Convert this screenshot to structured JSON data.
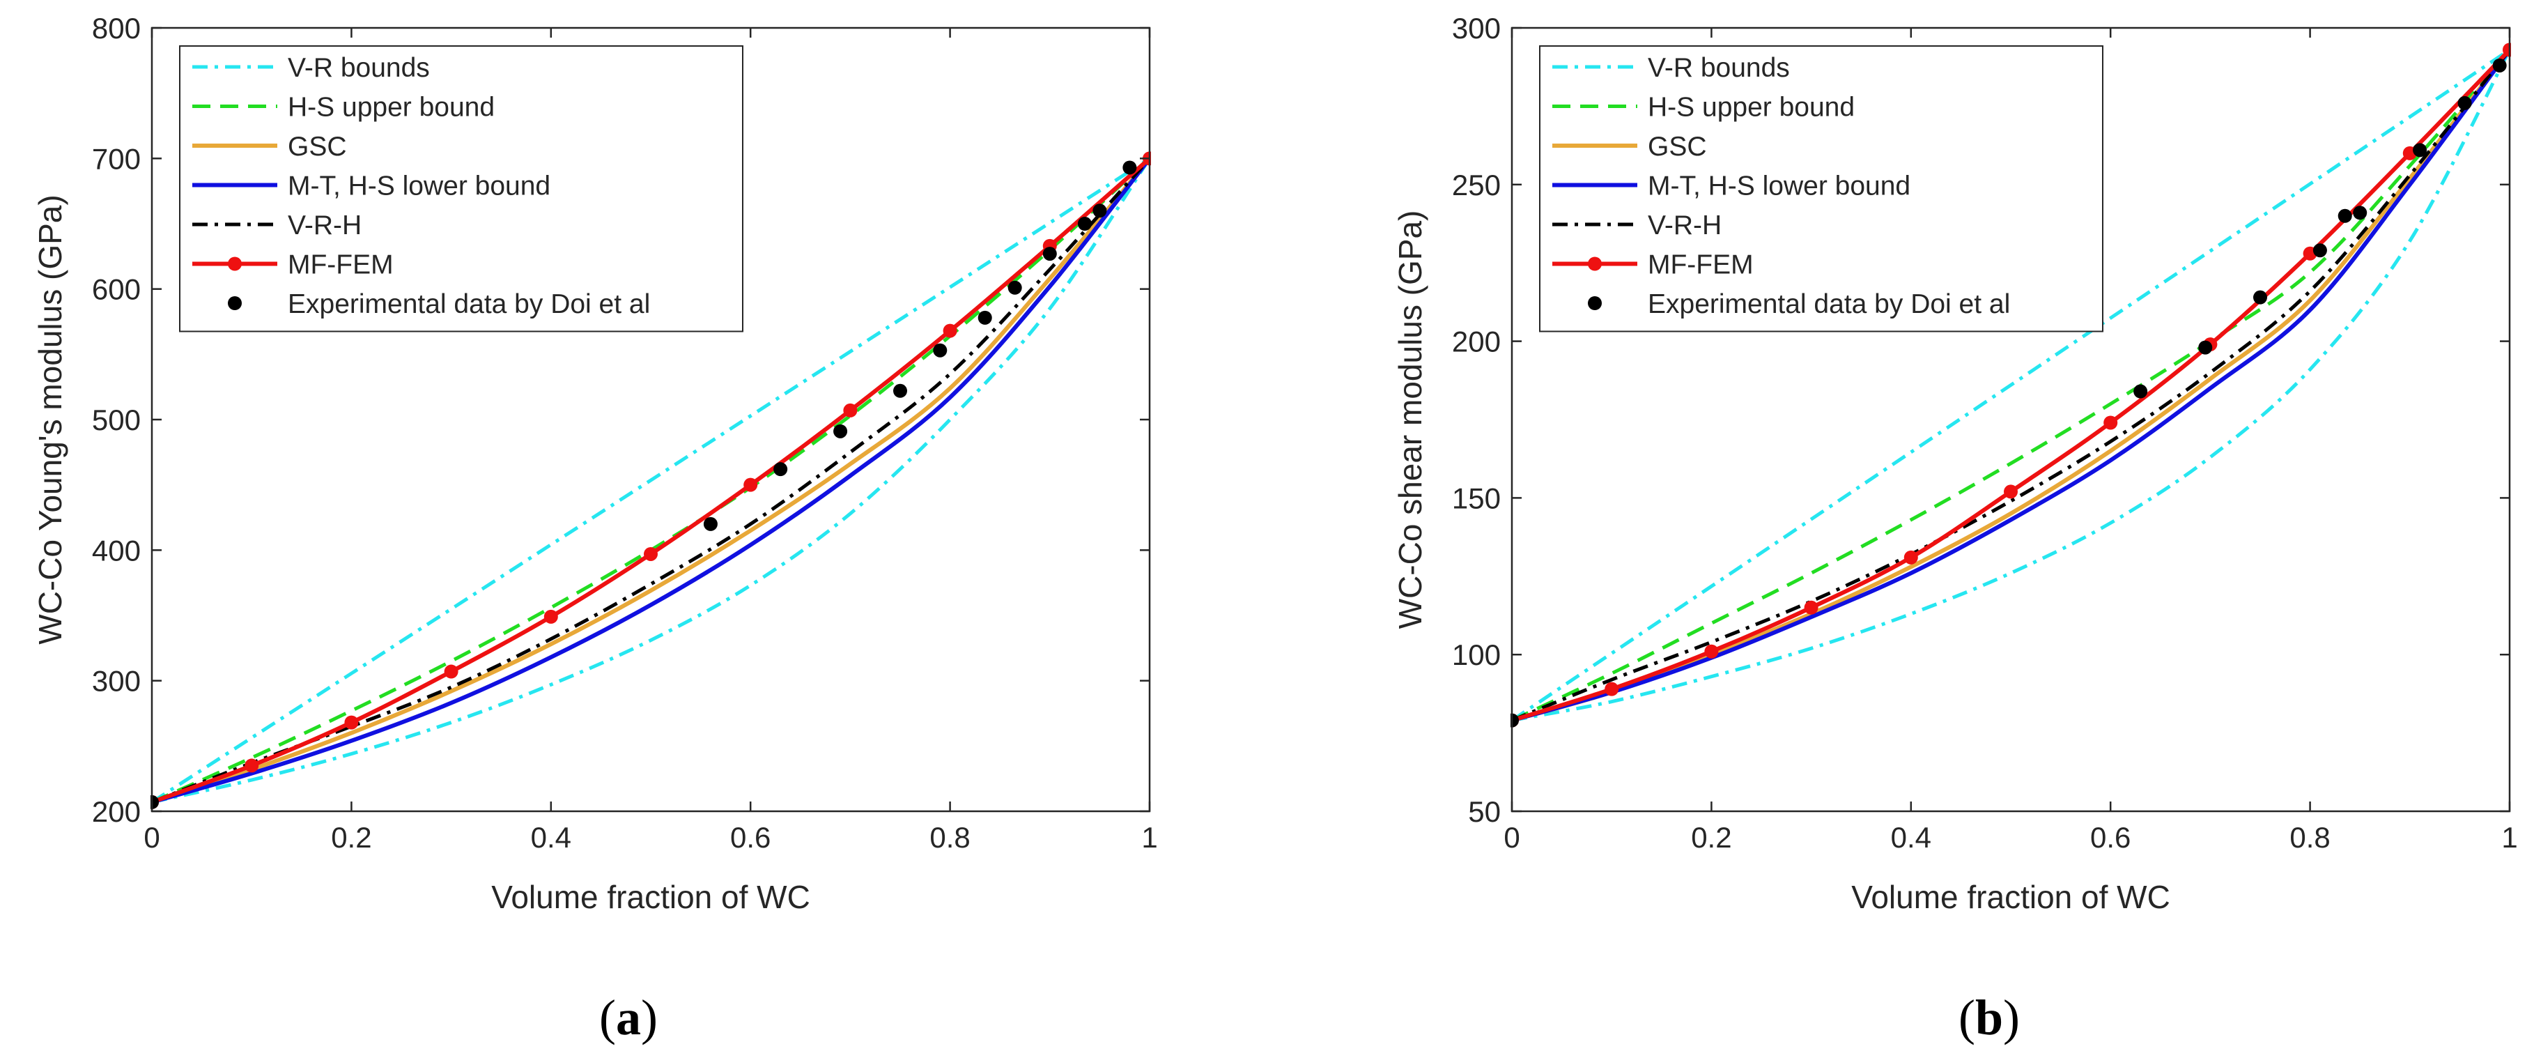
{
  "chart_data": [
    {
      "type": "line",
      "caption_letter": "a",
      "xlabel": "Volume fraction of WC",
      "ylabel": "WC-Co Young's modulus (GPa)",
      "xlim": [
        0,
        1
      ],
      "ylim": [
        200,
        800
      ],
      "x_ticks": [
        0,
        0.2,
        0.4,
        0.6,
        0.8,
        1
      ],
      "x_tick_labels": [
        "0",
        "0.2",
        "0.4",
        "0.6",
        "0.8",
        "1"
      ],
      "y_ticks": [
        200,
        300,
        400,
        500,
        600,
        700,
        800
      ],
      "y_tick_labels": [
        "200",
        "300",
        "400",
        "500",
        "600",
        "700",
        "800"
      ],
      "legend_position": "top-left",
      "series": [
        {
          "name": "V-R bounds",
          "style": "dashdot",
          "color": "#26e6f0",
          "x": [
            0,
            1
          ],
          "y": [
            207,
            700
          ]
        },
        {
          "name": "V-R bounds (lower)",
          "in_legend": false,
          "style": "dashdot",
          "color": "#26e6f0",
          "x": [
            0,
            0.1,
            0.2,
            0.3,
            0.4,
            0.5,
            0.6,
            0.7,
            0.8,
            0.9,
            1
          ],
          "y": [
            207,
            224,
            244,
            268,
            297,
            331,
            373,
            428,
            500,
            585,
            700
          ]
        },
        {
          "name": "H-S upper bound",
          "style": "dashed",
          "color": "#22dd22",
          "x": [
            0,
            0.1,
            0.2,
            0.3,
            0.4,
            0.5,
            0.6,
            0.7,
            0.8,
            0.9,
            1
          ],
          "y": [
            207,
            241,
            277,
            315,
            356,
            400,
            448,
            503,
            564,
            630,
            700
          ]
        },
        {
          "name": "GSC",
          "style": "solid",
          "color": "#e8a838",
          "x": [
            0,
            0.1,
            0.2,
            0.3,
            0.4,
            0.5,
            0.6,
            0.7,
            0.8,
            0.9,
            1
          ],
          "y": [
            207,
            232,
            260,
            292,
            328,
            369,
            415,
            466,
            524,
            608,
            700
          ]
        },
        {
          "name": "M-T, H-S lower bound",
          "style": "solid",
          "color": "#1010e0",
          "x": [
            0,
            0.1,
            0.2,
            0.3,
            0.4,
            0.5,
            0.6,
            0.7,
            0.8,
            0.9,
            1
          ],
          "y": [
            207,
            229,
            254,
            283,
            318,
            358,
            404,
            457,
            517,
            602,
            700
          ]
        },
        {
          "name": "V-R-H",
          "style": "dashdot",
          "color": "#000000",
          "x": [
            0,
            0.1,
            0.2,
            0.3,
            0.4,
            0.5,
            0.6,
            0.7,
            0.8,
            0.9,
            1
          ],
          "y": [
            207,
            237,
            265,
            295,
            332,
            374,
            420,
            475,
            535,
            615,
            700
          ]
        },
        {
          "name": "MF-FEM",
          "style": "solid-marker",
          "color": "#ee1111",
          "x": [
            0,
            0.1,
            0.2,
            0.3,
            0.4,
            0.5,
            0.6,
            0.7,
            0.8,
            0.9,
            1
          ],
          "y": [
            207,
            235,
            268,
            307,
            349,
            397,
            450,
            507,
            568,
            633,
            700
          ]
        },
        {
          "name": "Experimental data by Doi et al",
          "style": "markers",
          "color": "#000000",
          "x": [
            0,
            0.56,
            0.63,
            0.69,
            0.75,
            0.79,
            0.835,
            0.865,
            0.9,
            0.935,
            0.95,
            0.98
          ],
          "y": [
            207,
            420,
            462,
            491,
            522,
            553,
            578,
            601,
            627,
            650,
            660,
            693
          ]
        }
      ]
    },
    {
      "type": "line",
      "caption_letter": "b",
      "xlabel": "Volume fraction of WC",
      "ylabel": "WC-Co shear modulus (GPa)",
      "xlim": [
        0,
        1
      ],
      "ylim": [
        50,
        300
      ],
      "x_ticks": [
        0,
        0.2,
        0.4,
        0.6,
        0.8,
        1
      ],
      "x_tick_labels": [
        "0",
        "0.2",
        "0.4",
        "0.6",
        "0.8",
        "1"
      ],
      "y_ticks": [
        50,
        100,
        150,
        200,
        250,
        300
      ],
      "y_tick_labels": [
        "50",
        "100",
        "150",
        "200",
        "250",
        "300"
      ],
      "legend_position": "top-left",
      "series": [
        {
          "name": "V-R bounds",
          "style": "dashdot",
          "color": "#26e6f0",
          "x": [
            0,
            1
          ],
          "y": [
            79,
            293
          ]
        },
        {
          "name": "V-R bounds (lower)",
          "in_legend": false,
          "style": "dashdot",
          "color": "#26e6f0",
          "x": [
            0,
            0.1,
            0.2,
            0.3,
            0.4,
            0.5,
            0.6,
            0.7,
            0.8,
            0.9,
            1
          ],
          "y": [
            79,
            85,
            93,
            102,
            113,
            126,
            142,
            163,
            191,
            232,
            293
          ]
        },
        {
          "name": "H-S upper bound",
          "style": "dashed",
          "color": "#22dd22",
          "x": [
            0,
            0.1,
            0.2,
            0.3,
            0.4,
            0.5,
            0.6,
            0.7,
            0.8,
            0.9,
            1
          ],
          "y": [
            79,
            94,
            110,
            126,
            143,
            161,
            180,
            200,
            222,
            256,
            293
          ]
        },
        {
          "name": "GSC",
          "style": "solid",
          "color": "#e8a838",
          "x": [
            0,
            0.1,
            0.2,
            0.3,
            0.4,
            0.5,
            0.6,
            0.7,
            0.8,
            0.9,
            1
          ],
          "y": [
            79,
            88,
            100,
            113,
            128,
            145,
            165,
            188,
            213,
            252,
            293
          ]
        },
        {
          "name": "M-T, H-S lower bound",
          "style": "solid",
          "color": "#1010e0",
          "x": [
            0,
            0.1,
            0.2,
            0.3,
            0.4,
            0.5,
            0.6,
            0.7,
            0.8,
            0.9,
            1
          ],
          "y": [
            79,
            88,
            99,
            112,
            126,
            143,
            162,
            185,
            210,
            250,
            293
          ]
        },
        {
          "name": "V-R-H",
          "style": "dashdot",
          "color": "#000000",
          "x": [
            0,
            0.1,
            0.2,
            0.3,
            0.4,
            0.5,
            0.6,
            0.7,
            0.8,
            0.9,
            1
          ],
          "y": [
            79,
            92,
            104,
            117,
            132,
            149,
            168,
            190,
            216,
            253,
            293
          ]
        },
        {
          "name": "MF-FEM",
          "style": "solid-marker",
          "color": "#ee1111",
          "x": [
            0,
            0.1,
            0.2,
            0.3,
            0.4,
            0.5,
            0.6,
            0.7,
            0.8,
            0.9,
            1
          ],
          "y": [
            79,
            89,
            101,
            115,
            131,
            152,
            174,
            199,
            228,
            260,
            293
          ]
        },
        {
          "name": "Experimental data by Doi et al",
          "style": "markers",
          "color": "#000000",
          "x": [
            0,
            0.63,
            0.695,
            0.75,
            0.81,
            0.835,
            0.85,
            0.91,
            0.955,
            0.99
          ],
          "y": [
            79,
            184,
            198,
            214,
            229,
            240,
            241,
            261,
            276,
            288
          ]
        }
      ]
    }
  ]
}
